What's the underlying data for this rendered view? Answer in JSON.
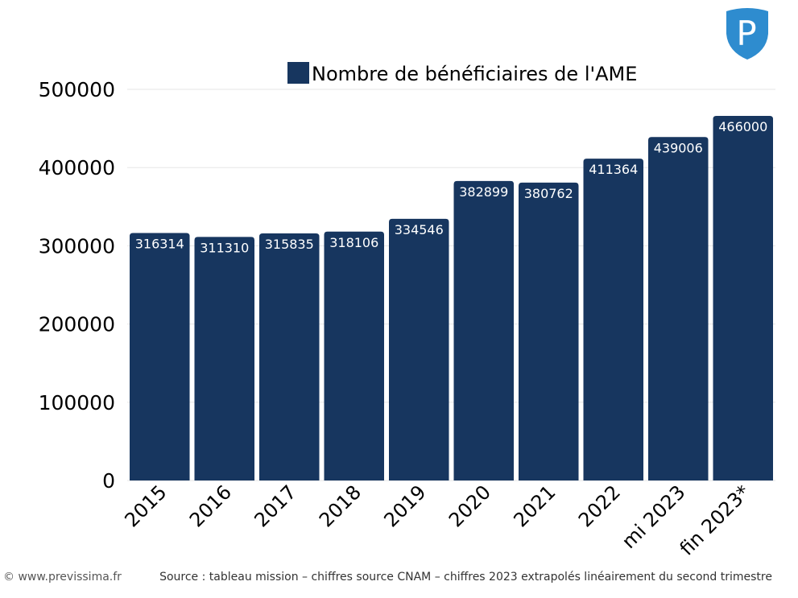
{
  "chart_data": {
    "type": "bar",
    "title": "",
    "xlabel": "",
    "ylabel": "",
    "categories": [
      "2015",
      "2016",
      "2017",
      "2018",
      "2019",
      "2020",
      "2021",
      "2022",
      "mi 2023",
      "fin 2023*"
    ],
    "series": [
      {
        "name": "Nombre de bénéficiaires de l'AME",
        "values": [
          316314,
          311310,
          315835,
          318106,
          334546,
          382899,
          380762,
          411364,
          439006,
          466000
        ],
        "color": "#17365f"
      }
    ],
    "data_labels": [
      "316314",
      "311310",
      "315835",
      "318106",
      "334546",
      "382899",
      "380762",
      "411364",
      "439006",
      "466000"
    ],
    "ylim": [
      0,
      500000
    ],
    "yticks": [
      "0",
      "100000",
      "200000",
      "300000",
      "400000",
      "500000"
    ],
    "grid": true,
    "legend_position": "top"
  },
  "logo": {
    "letter": "P",
    "color": "#2e8ccf",
    "icon": "previssima-shield-logo"
  },
  "footer": {
    "copyright": "© www.previssima.fr",
    "source": "Source : tableau mission – chiffres source CNAM – chiffres 2023 extrapolés linéairement du second trimestre"
  }
}
